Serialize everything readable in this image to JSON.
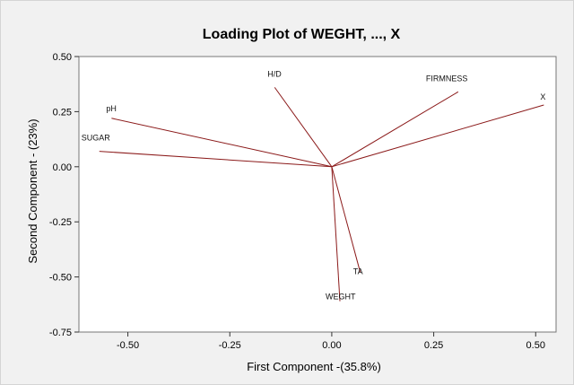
{
  "chart_data": {
    "type": "scatter",
    "title": "Loading Plot of WEGHT, ..., X",
    "xlabel": "First Component -(35.8%)",
    "ylabel": "Second Component - (23%)",
    "xlim": [
      -0.62,
      0.55
    ],
    "ylim": [
      -0.75,
      0.5
    ],
    "xticks": [
      "-0.50",
      "-0.25",
      "0.00",
      "0.25",
      "0.50"
    ],
    "xtick_values": [
      -0.5,
      -0.25,
      0,
      0.25,
      0.5
    ],
    "yticks": [
      "0.50",
      "0.25",
      "0.00",
      "-0.25",
      "-0.50",
      "-0.75"
    ],
    "ytick_values": [
      0.5,
      0.25,
      0,
      -0.25,
      -0.5,
      -0.75
    ],
    "grid": false,
    "line_color": "#8b1a1a",
    "points": [
      {
        "name": "pH",
        "x": -0.54,
        "y": 0.22
      },
      {
        "name": "SUGAR",
        "x": -0.57,
        "y": 0.07
      },
      {
        "name": "H/D",
        "x": -0.14,
        "y": 0.36
      },
      {
        "name": "FIRMNESS",
        "x": 0.31,
        "y": 0.34
      },
      {
        "name": "X",
        "x": 0.52,
        "y": 0.28
      },
      {
        "name": "TA",
        "x": 0.07,
        "y": -0.48
      },
      {
        "name": "WEGHT",
        "x": 0.02,
        "y": -0.61
      }
    ]
  }
}
